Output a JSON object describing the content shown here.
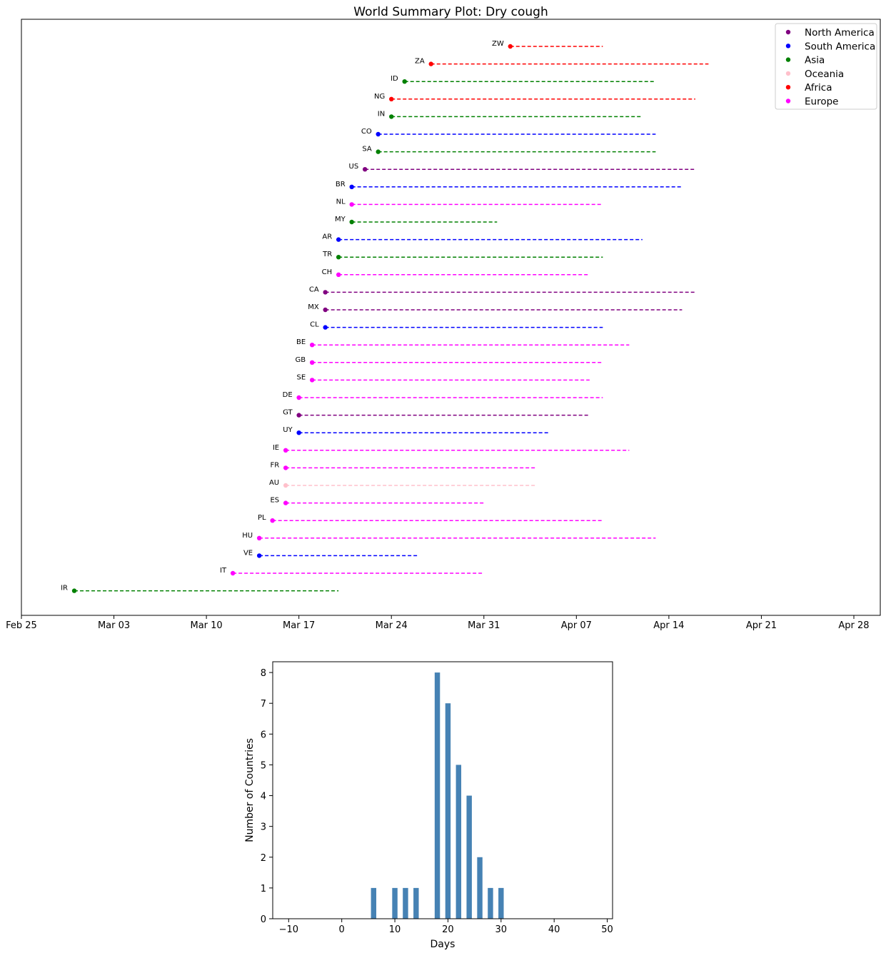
{
  "chart_data": [
    {
      "type": "scatter",
      "title": "World Summary Plot: Dry cough",
      "xlabel": "",
      "ylabel": "",
      "x_axis": "date",
      "xlim": [
        "2020-02-25",
        "2020-04-30"
      ],
      "x_tick_labels": [
        "Feb 25",
        "Mar 03",
        "Mar 10",
        "Mar 17",
        "Mar 24",
        "Mar 31",
        "Apr 07",
        "Apr 14",
        "Apr 21",
        "Apr 28"
      ],
      "x_tick_dates": [
        "2020-02-25",
        "2020-03-03",
        "2020-03-10",
        "2020-03-17",
        "2020-03-24",
        "2020-03-31",
        "2020-04-07",
        "2020-04-14",
        "2020-04-21",
        "2020-04-28"
      ],
      "grid": false,
      "legend_position": "top-right",
      "legend": [
        {
          "name": "North America",
          "color": "#800080"
        },
        {
          "name": "South America",
          "color": "#0000ff"
        },
        {
          "name": "Asia",
          "color": "#008000"
        },
        {
          "name": "Oceania",
          "color": "#ffc0cb"
        },
        {
          "name": "Africa",
          "color": "#ff0000"
        },
        {
          "name": "Europe",
          "color": "#ff00ff"
        }
      ],
      "series": [
        {
          "label": "ZW",
          "region": "Africa",
          "start": "2020-04-02",
          "end": "2020-04-09"
        },
        {
          "label": "ZA",
          "region": "Africa",
          "start": "2020-03-27",
          "end": "2020-04-17"
        },
        {
          "label": "ID",
          "region": "Asia",
          "start": "2020-03-25",
          "end": "2020-04-13"
        },
        {
          "label": "NG",
          "region": "Africa",
          "start": "2020-03-24",
          "end": "2020-04-16"
        },
        {
          "label": "IN",
          "region": "Asia",
          "start": "2020-03-24",
          "end": "2020-04-12"
        },
        {
          "label": "CO",
          "region": "South America",
          "start": "2020-03-23",
          "end": "2020-04-13"
        },
        {
          "label": "SA",
          "region": "Asia",
          "start": "2020-03-23",
          "end": "2020-04-13"
        },
        {
          "label": "US",
          "region": "North America",
          "start": "2020-03-22",
          "end": "2020-04-16"
        },
        {
          "label": "BR",
          "region": "South America",
          "start": "2020-03-21",
          "end": "2020-04-15"
        },
        {
          "label": "NL",
          "region": "Europe",
          "start": "2020-03-21",
          "end": "2020-04-09"
        },
        {
          "label": "MY",
          "region": "Asia",
          "start": "2020-03-21",
          "end": "2020-04-01"
        },
        {
          "label": "AR",
          "region": "South America",
          "start": "2020-03-20",
          "end": "2020-04-12"
        },
        {
          "label": "TR",
          "region": "Asia",
          "start": "2020-03-20",
          "end": "2020-04-09"
        },
        {
          "label": "CH",
          "region": "Europe",
          "start": "2020-03-20",
          "end": "2020-04-08"
        },
        {
          "label": "CA",
          "region": "North America",
          "start": "2020-03-19",
          "end": "2020-04-16"
        },
        {
          "label": "MX",
          "region": "North America",
          "start": "2020-03-19",
          "end": "2020-04-15"
        },
        {
          "label": "CL",
          "region": "South America",
          "start": "2020-03-19",
          "end": "2020-04-09"
        },
        {
          "label": "BE",
          "region": "Europe",
          "start": "2020-03-18",
          "end": "2020-04-11"
        },
        {
          "label": "GB",
          "region": "Europe",
          "start": "2020-03-18",
          "end": "2020-04-09"
        },
        {
          "label": "SE",
          "region": "Europe",
          "start": "2020-03-18",
          "end": "2020-04-08"
        },
        {
          "label": "DE",
          "region": "Europe",
          "start": "2020-03-17",
          "end": "2020-04-09"
        },
        {
          "label": "GT",
          "region": "North America",
          "start": "2020-03-17",
          "end": "2020-04-08"
        },
        {
          "label": "UY",
          "region": "South America",
          "start": "2020-03-17",
          "end": "2020-04-05"
        },
        {
          "label": "IE",
          "region": "Europe",
          "start": "2020-03-16",
          "end": "2020-04-11"
        },
        {
          "label": "FR",
          "region": "Europe",
          "start": "2020-03-16",
          "end": "2020-04-04"
        },
        {
          "label": "AU",
          "region": "Oceania",
          "start": "2020-03-16",
          "end": "2020-04-04"
        },
        {
          "label": "ES",
          "region": "Europe",
          "start": "2020-03-16",
          "end": "2020-03-31"
        },
        {
          "label": "PL",
          "region": "Europe",
          "start": "2020-03-15",
          "end": "2020-04-09"
        },
        {
          "label": "HU",
          "region": "Europe",
          "start": "2020-03-14",
          "end": "2020-04-13"
        },
        {
          "label": "VE",
          "region": "South America",
          "start": "2020-03-14",
          "end": "2020-03-26"
        },
        {
          "label": "IT",
          "region": "Europe",
          "start": "2020-03-12",
          "end": "2020-03-31"
        },
        {
          "label": "IR",
          "region": "Asia",
          "start": "2020-02-29",
          "end": "2020-03-20"
        }
      ]
    },
    {
      "type": "bar",
      "title": "",
      "xlabel": "Days",
      "ylabel": "Number of Countries",
      "xlim": [
        -13,
        51
      ],
      "ylim": [
        0,
        8.35
      ],
      "x_ticks": [
        -10,
        0,
        10,
        20,
        30,
        40,
        50
      ],
      "y_ticks": [
        0,
        1,
        2,
        3,
        4,
        5,
        6,
        7,
        8
      ],
      "bar_width": 1,
      "color": "#4682b4",
      "grid": false,
      "x": [
        6,
        10,
        12,
        14,
        18,
        20,
        22,
        24,
        26,
        28,
        30
      ],
      "values": [
        1,
        1,
        1,
        1,
        8,
        7,
        5,
        4,
        2,
        1,
        1
      ]
    }
  ]
}
